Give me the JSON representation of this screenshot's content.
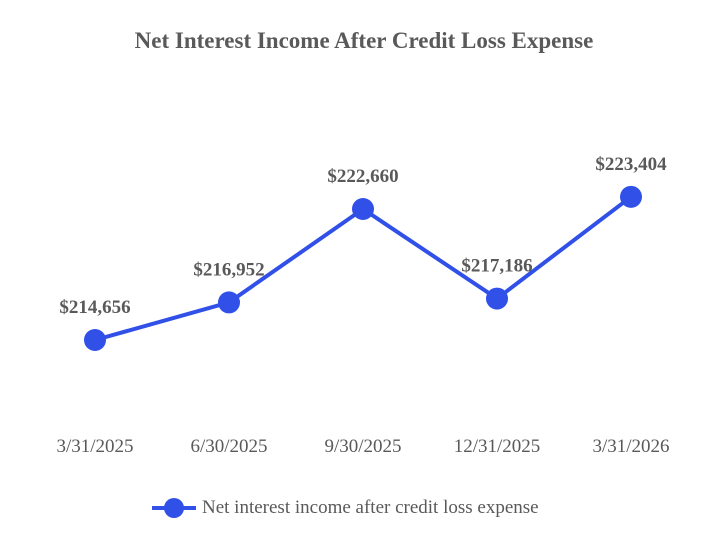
{
  "chart_data": {
    "type": "line",
    "title": "Net Interest Income After Credit Loss Expense",
    "categories": [
      "3/31/2025",
      "6/30/2025",
      "9/30/2025",
      "12/31/2025",
      "3/31/2026"
    ],
    "series": [
      {
        "name": "Net interest income after credit loss expense",
        "values": [
          214656,
          216952,
          222660,
          217186,
          223404
        ],
        "labels": [
          "$214,656",
          "$216,952",
          "$222,660",
          "$217,186",
          "$223,404"
        ],
        "color": "#3050e8"
      }
    ],
    "xlabel": "",
    "ylabel": "",
    "grid": false,
    "legend": "bottom"
  }
}
